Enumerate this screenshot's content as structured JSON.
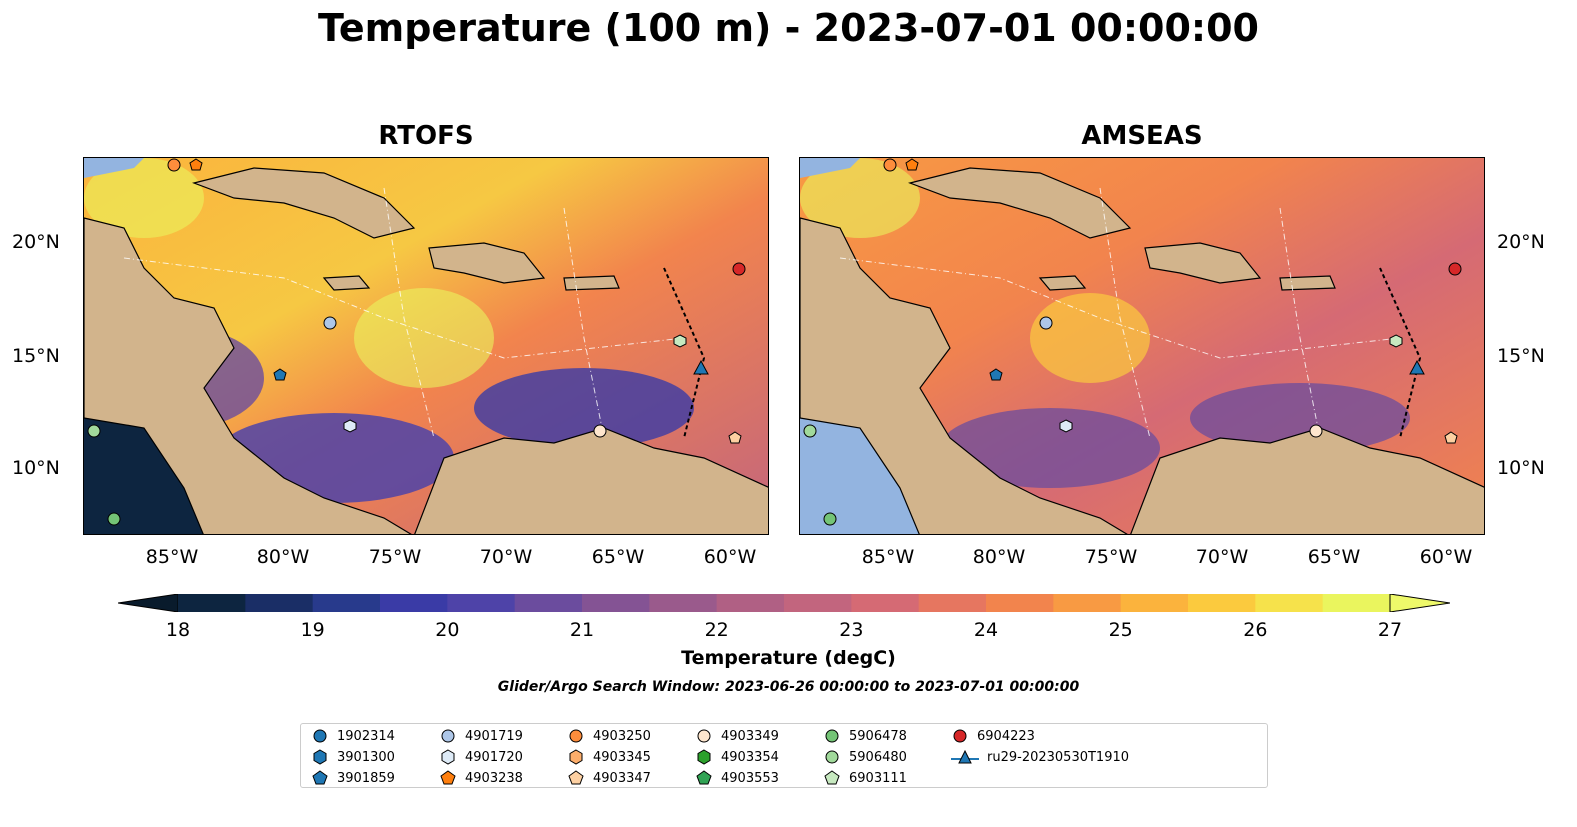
{
  "title": "Temperature (100 m) - 2023-07-01 00:00:00",
  "panels": [
    {
      "title": "RTOFS"
    },
    {
      "title": "AMSEAS"
    }
  ],
  "x_ticks": [
    "85°W",
    "80°W",
    "75°W",
    "70°W",
    "65°W",
    "60°W"
  ],
  "y_ticks": [
    "20°N",
    "15°N",
    "10°N"
  ],
  "colorbar": {
    "ticks": [
      "18",
      "19",
      "20",
      "21",
      "22",
      "23",
      "24",
      "25",
      "26",
      "27"
    ],
    "label": "Temperature (degC)",
    "colors": [
      "#0d2540",
      "#1a2e66",
      "#283a8c",
      "#3a3ba6",
      "#4e43a8",
      "#6b4c9e",
      "#845394",
      "#9a5a8c",
      "#b06084",
      "#c2657e",
      "#d56a74",
      "#e67660",
      "#f2844d",
      "#f89a43",
      "#fbb33d",
      "#fbca3e",
      "#f6e24b",
      "#eaf55e"
    ],
    "min_color": "#091b2c",
    "max_color": "#eef96a"
  },
  "search_window": "Glider/Argo Search Window: 2023-06-26 00:00:00 to 2023-07-01 00:00:00",
  "legend": [
    {
      "label": "1902314",
      "marker": "circle",
      "color": "#1f77b4"
    },
    {
      "label": "3901300",
      "marker": "hexagon",
      "color": "#1f77b4"
    },
    {
      "label": "3901859",
      "marker": "pentagon",
      "color": "#1f77b4"
    },
    {
      "label": "4901719",
      "marker": "circle",
      "color": "#aec7e8"
    },
    {
      "label": "4901720",
      "marker": "hexagon",
      "color": "#deebf7"
    },
    {
      "label": "4903238",
      "marker": "pentagon",
      "color": "#ff7f0e"
    },
    {
      "label": "4903250",
      "marker": "circle",
      "color": "#fd8d3c"
    },
    {
      "label": "4903345",
      "marker": "hexagon",
      "color": "#fdae6b"
    },
    {
      "label": "4903347",
      "marker": "pentagon",
      "color": "#fdd0a2"
    },
    {
      "label": "4903349",
      "marker": "circle",
      "color": "#fee6ce"
    },
    {
      "label": "4903354",
      "marker": "hexagon",
      "color": "#2ca02c"
    },
    {
      "label": "4903553",
      "marker": "pentagon",
      "color": "#31a354"
    },
    {
      "label": "5906478",
      "marker": "circle",
      "color": "#74c476"
    },
    {
      "label": "5906480",
      "marker": "circle",
      "color": "#a1d99b"
    },
    {
      "label": "6903111",
      "marker": "pentagon",
      "color": "#c7e9c0"
    },
    {
      "label": "6904223",
      "marker": "circle",
      "color": "#d62728"
    },
    {
      "label": "ru29-20230530T1910",
      "marker": "triangle-line",
      "color": "#1f77b4"
    }
  ]
}
